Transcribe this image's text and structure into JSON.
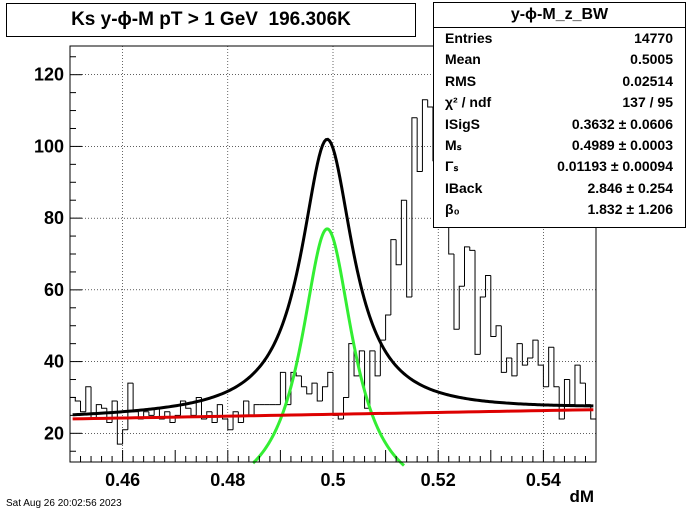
{
  "title": "Ks y-ϕ-M pT > 1 GeV  196.306K",
  "footer_time": "Sat Aug 26 20:02:56 2023",
  "stats": {
    "header": "y-ϕ-M_z_BW",
    "rows": [
      {
        "label": "Entries",
        "value": "14770"
      },
      {
        "label": "Mean",
        "value": "0.5005"
      },
      {
        "label": "RMS",
        "value": "0.02514"
      },
      {
        "label": "χ² / ndf",
        "value": "137 / 95"
      },
      {
        "label": "ISigS",
        "value": "0.3632 ± 0.0606"
      },
      {
        "label": "Mₛ",
        "value": "0.4989 ± 0.0003"
      },
      {
        "label": "Γₛ",
        "value": "0.01193 ± 0.00094"
      },
      {
        "label": "IBack",
        "value": "2.846 ± 0.254"
      },
      {
        "label": "β₀",
        "value": "1.832 ± 1.206"
      }
    ]
  },
  "chart_data": {
    "type": "histogram",
    "xlabel": "dM",
    "ylabel": "",
    "xlim": [
      0.45,
      0.55
    ],
    "ylim": [
      12,
      128
    ],
    "xticks": [
      0.46,
      0.48,
      0.5,
      0.52,
      0.54
    ],
    "yticks": [
      20,
      40,
      60,
      80,
      100,
      120
    ],
    "grid": true,
    "bin_edges_range": [
      0.45,
      0.55
    ],
    "bin_count": 100,
    "bin_values": [
      30,
      29,
      26,
      33,
      24,
      28,
      27,
      23,
      29,
      17,
      21,
      34,
      26,
      24,
      26,
      25,
      27,
      24,
      26,
      23,
      25,
      29,
      27,
      25,
      30,
      24,
      26,
      23,
      28,
      24,
      21,
      26,
      23,
      29,
      25,
      28,
      28,
      28,
      28,
      28,
      37,
      28,
      37,
      36,
      33,
      31,
      34,
      29,
      33,
      37,
      25,
      24,
      30,
      45,
      36,
      43,
      27,
      43,
      36,
      46,
      53,
      74,
      67,
      85,
      58,
      108,
      93,
      113,
      111,
      96,
      80,
      88,
      70,
      49,
      61,
      72,
      71,
      42,
      58,
      64,
      47,
      50,
      37,
      41,
      36,
      45,
      39,
      41,
      46,
      39,
      33,
      44,
      33,
      24,
      35,
      28,
      39,
      34,
      28,
      24
    ],
    "curves": [
      {
        "name": "total fit",
        "color": "#000000",
        "x_range": [
          0.4505,
          0.5495
        ],
        "function": "BW signal + linear background",
        "peak_y": 102
      },
      {
        "name": "signal",
        "color": "#33ee33",
        "x_range": [
          0.4848,
          0.5135
        ],
        "function": "Breit-Wigner",
        "mean": 0.4989,
        "width": 0.01193,
        "peak_y": 77
      },
      {
        "name": "background",
        "color": "#dd0000",
        "x_range": [
          0.4505,
          0.5495
        ],
        "function": "linear",
        "y_start": 24,
        "y_end": 26.6
      }
    ]
  }
}
